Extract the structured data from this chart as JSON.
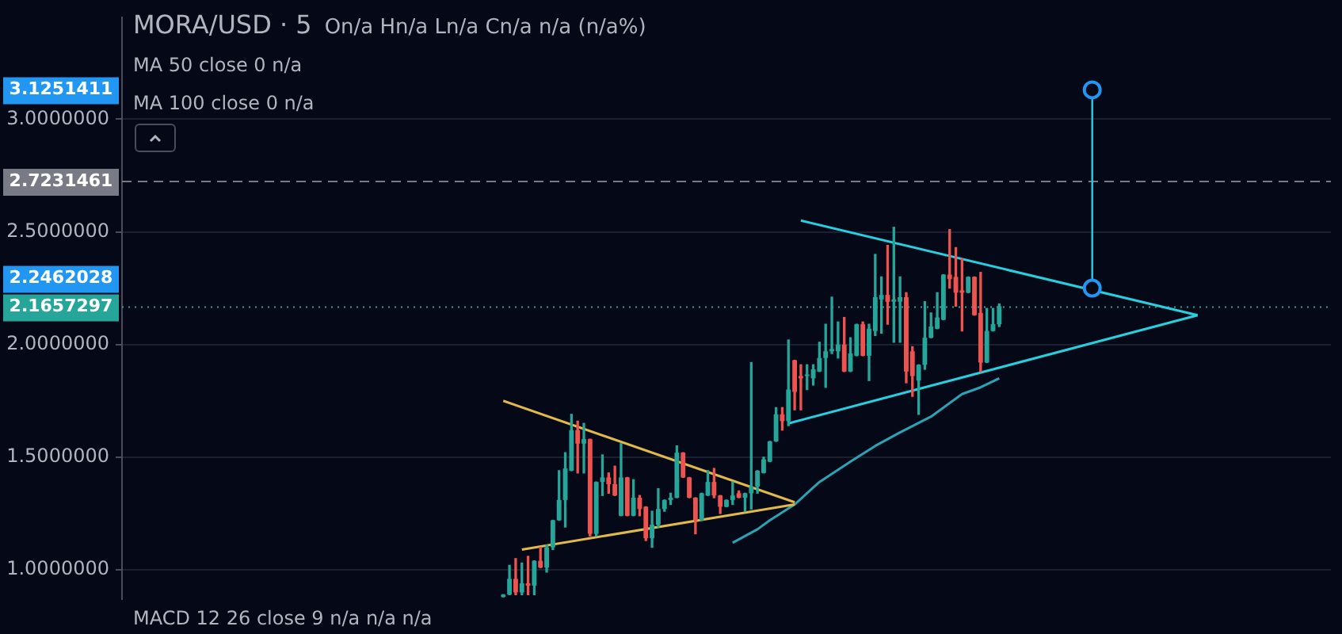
{
  "chart_data": {
    "type": "candlestick",
    "title": "MORA/USD · 5",
    "subtitle": "On/a Hn/a Ln/a Cn/a n/a (n/a%)",
    "annotations": [
      "MA 50 close 0  n/a",
      "MA 100 close 0  n/a",
      "MACD 12 26 close 9  n/a  n/a  n/a",
      "3.1251411",
      "2.2462028"
    ],
    "categories": [
      null,
      null,
      null,
      null,
      null,
      null,
      null,
      null,
      null,
      null,
      null,
      null,
      null,
      null,
      null,
      null,
      null,
      null,
      null,
      null,
      null,
      null,
      null,
      null,
      null,
      null,
      null,
      null,
      null,
      null,
      null,
      null,
      null,
      null,
      null,
      null,
      null,
      null,
      null,
      null,
      null,
      null,
      null,
      null,
      null,
      null,
      null,
      null,
      null,
      null,
      null,
      null,
      null,
      null,
      null,
      null,
      null,
      null,
      null,
      null,
      null,
      null,
      null,
      null,
      null,
      null,
      null,
      null,
      null,
      null,
      null,
      null,
      null,
      null,
      null,
      null,
      null,
      null,
      null,
      null,
      null,
      null,
      null,
      null,
      null,
      null,
      null,
      null,
      null,
      null,
      null,
      null,
      null,
      null,
      null,
      null,
      null,
      null,
      null,
      null,
      null,
      null,
      null,
      null,
      null,
      null,
      null,
      null,
      null,
      null,
      null,
      null,
      null,
      null,
      null,
      null,
      null,
      null,
      null,
      null,
      null,
      null,
      null,
      null,
      null,
      null,
      null,
      null,
      null,
      null,
      null,
      null,
      null,
      null,
      null,
      null,
      null,
      null,
      null,
      null,
      null,
      null,
      null,
      null,
      null,
      null,
      null,
      null,
      null,
      null,
      null,
      null,
      null,
      null,
      null,
      null,
      null,
      null,
      null,
      null,
      null,
      null,
      null,
      null,
      null,
      null,
      null,
      null,
      null,
      null,
      null,
      null,
      null,
      null,
      null,
      null,
      null,
      null,
      null,
      null,
      null,
      null,
      null,
      null,
      null,
      null,
      null,
      null,
      null,
      null,
      null,
      null,
      null,
      null,
      null
    ],
    "ohlc": [
      null,
      null,
      null,
      null,
      null,
      null,
      null,
      null,
      null,
      null,
      null,
      null,
      null,
      null,
      null,
      null,
      null,
      null,
      null,
      null,
      null,
      null,
      null,
      null,
      null,
      null,
      null,
      null,
      null,
      null,
      null,
      null,
      null,
      null,
      null,
      null,
      null,
      null,
      null,
      null,
      null,
      null,
      null,
      null,
      null,
      null,
      null,
      null,
      null,
      null,
      null,
      null,
      null,
      null,
      null,
      null,
      null,
      null,
      null,
      null,
      null,
      [
        0.88,
        0.89,
        0.88,
        0.89
      ],
      [
        0.89,
        1.02,
        0.89,
        0.96
      ],
      [
        0.96,
        1.05,
        0.89,
        0.9
      ],
      [
        0.9,
        1.03,
        0.89,
        0.94
      ],
      [
        0.94,
        1.06,
        0.89,
        0.93
      ],
      [
        0.93,
        1.04,
        0.89,
        1.04
      ],
      [
        1.04,
        1.1,
        1.01,
        1.01
      ],
      [
        1.01,
        1.11,
        0.99,
        1.1
      ],
      [
        1.1,
        1.22,
        1.09,
        1.22
      ],
      [
        1.22,
        1.44,
        1.22,
        1.31
      ],
      [
        1.31,
        1.52,
        1.19,
        1.45
      ],
      [
        1.44,
        1.69,
        1.44,
        1.62
      ],
      [
        1.62,
        1.66,
        1.43,
        1.56
      ],
      [
        1.56,
        1.65,
        1.43,
        1.58
      ],
      [
        1.58,
        1.58,
        1.15,
        1.16
      ],
      [
        1.16,
        1.39,
        1.15,
        1.39
      ],
      [
        1.39,
        1.51,
        1.33,
        1.41
      ],
      [
        1.41,
        1.43,
        1.34,
        1.38
      ],
      [
        1.38,
        1.46,
        1.33,
        1.33
      ],
      [
        1.24,
        1.56,
        1.24,
        1.41
      ],
      [
        1.41,
        1.41,
        1.24,
        1.24
      ],
      [
        1.24,
        1.4,
        1.24,
        1.32
      ],
      [
        1.32,
        1.33,
        1.24,
        1.27
      ],
      [
        1.28,
        1.28,
        1.13,
        1.14
      ],
      [
        1.14,
        1.26,
        1.1,
        1.2
      ],
      [
        1.2,
        1.36,
        1.19,
        1.27
      ],
      [
        1.27,
        1.31,
        1.26,
        1.31
      ],
      [
        1.31,
        1.34,
        1.29,
        1.32
      ],
      [
        1.32,
        1.55,
        1.32,
        1.52
      ],
      [
        1.52,
        1.52,
        1.41,
        1.41
      ],
      [
        1.41,
        1.41,
        1.32,
        1.32
      ],
      [
        1.32,
        1.32,
        1.16,
        1.22
      ],
      [
        1.22,
        1.34,
        1.22,
        1.34
      ],
      [
        1.33,
        1.44,
        1.33,
        1.39
      ],
      [
        1.39,
        1.45,
        1.32,
        1.33
      ],
      [
        1.33,
        1.33,
        1.25,
        1.28
      ],
      [
        1.28,
        1.31,
        1.28,
        1.31
      ],
      [
        1.31,
        1.39,
        1.29,
        1.33
      ],
      [
        1.34,
        1.35,
        1.32,
        1.32
      ],
      [
        1.32,
        1.34,
        1.26,
        1.34
      ],
      [
        1.34,
        1.92,
        1.27,
        1.37
      ],
      [
        1.37,
        1.44,
        1.34,
        1.44
      ],
      [
        1.43,
        1.5,
        1.43,
        1.49
      ],
      [
        1.48,
        1.57,
        1.48,
        1.57
      ],
      [
        1.57,
        1.72,
        1.57,
        1.69
      ],
      [
        1.69,
        1.72,
        1.62,
        1.66
      ],
      [
        1.66,
        2.02,
        1.64,
        1.8
      ],
      [
        1.93,
        1.93,
        1.71,
        1.79
      ],
      [
        1.86,
        1.91,
        1.71,
        1.85
      ],
      [
        1.86,
        1.91,
        1.8,
        1.86
      ],
      [
        1.85,
        1.91,
        1.82,
        1.89
      ],
      [
        1.88,
        2.01,
        1.88,
        1.94
      ],
      [
        1.94,
        2.09,
        1.81,
        1.97
      ],
      [
        1.97,
        2.21,
        1.96,
        1.98
      ],
      [
        1.97,
        2.1,
        1.94,
        2.0
      ],
      [
        2.0,
        2.12,
        1.88,
        1.88
      ],
      [
        1.88,
        2.03,
        1.88,
        1.96
      ],
      [
        1.95,
        2.09,
        1.95,
        2.09
      ],
      [
        2.09,
        2.1,
        1.95,
        1.95
      ],
      [
        1.95,
        2.09,
        1.84,
        2.07
      ],
      [
        2.06,
        2.4,
        2.04,
        2.21
      ],
      [
        2.2,
        2.3,
        2.05,
        2.22
      ],
      [
        2.22,
        2.44,
        2.09,
        2.19
      ],
      [
        2.19,
        2.52,
        2.01,
        2.2
      ],
      [
        2.19,
        2.3,
        2.01,
        2.21
      ],
      [
        2.21,
        2.23,
        1.83,
        1.88
      ],
      [
        1.97,
        1.99,
        1.77,
        1.86
      ],
      [
        1.84,
        1.91,
        1.69,
        1.91
      ],
      [
        1.91,
        2.19,
        1.89,
        2.03
      ],
      [
        2.03,
        2.14,
        2.03,
        2.08
      ],
      [
        2.07,
        2.23,
        2.07,
        2.12
      ],
      [
        2.11,
        2.31,
        2.11,
        2.31
      ],
      [
        2.31,
        2.51,
        2.25,
        2.29
      ],
      [
        2.3,
        2.43,
        2.17,
        2.23
      ],
      [
        2.24,
        2.38,
        2.06,
        2.23
      ],
      [
        2.23,
        2.3,
        2.23,
        2.3
      ],
      [
        2.3,
        2.3,
        2.13,
        2.13
      ],
      [
        2.14,
        2.32,
        1.88,
        1.92
      ],
      [
        1.92,
        2.16,
        1.92,
        2.06
      ],
      [
        2.06,
        2.16,
        2.06,
        2.09
      ],
      [
        2.09,
        2.18,
        2.08,
        2.17
      ],
      null,
      null,
      null,
      null,
      null,
      null,
      null,
      null,
      null,
      null,
      null,
      null,
      null,
      null,
      null,
      null,
      null,
      null,
      null,
      null,
      null,
      null,
      null,
      null,
      null,
      null,
      null,
      null,
      null,
      null,
      null,
      null,
      null,
      null,
      null,
      null,
      null,
      null,
      null,
      null,
      null,
      null,
      null,
      null,
      null,
      null,
      null,
      null,
      null,
      null,
      null,
      null,
      null
    ],
    "series": [
      {
        "type": "line",
        "color": "#e0b94a",
        "values": [
          null,
          null,
          null,
          null,
          null,
          null,
          null,
          null,
          null,
          null,
          null,
          null,
          null,
          null,
          null,
          null,
          null,
          null,
          null,
          null,
          null,
          null,
          null,
          null,
          null,
          null,
          null,
          null,
          null,
          null,
          null,
          null,
          null,
          null,
          null,
          null,
          null,
          null,
          null,
          null,
          null,
          null,
          null,
          null,
          null,
          null,
          null,
          null,
          null,
          null,
          null,
          null,
          null,
          null,
          null,
          null,
          null,
          null,
          null,
          null,
          null,
          1.75,
          null,
          null,
          null,
          null,
          null,
          null,
          null,
          null,
          null,
          null,
          null,
          null,
          null,
          null,
          null,
          null,
          null,
          null,
          null,
          null,
          null,
          null,
          null,
          null,
          null,
          null,
          null,
          null,
          null,
          null,
          null,
          null,
          null,
          null,
          null,
          null,
          null,
          null,
          null,
          null,
          null,
          null,
          null,
          null,
          null,
          null,
          1.3,
          null,
          null,
          null,
          null,
          null,
          null,
          null,
          null,
          null,
          null,
          null,
          null,
          null,
          null,
          null,
          null,
          null,
          null,
          null,
          null,
          null,
          null,
          null,
          null,
          null,
          null,
          null,
          null,
          null,
          null,
          null,
          null,
          null,
          null,
          null,
          null,
          null,
          null,
          null,
          null,
          null,
          null,
          null,
          null,
          null,
          null,
          null,
          null,
          null,
          null,
          null,
          null,
          null,
          null,
          null,
          null,
          null,
          null,
          null,
          null,
          null,
          null,
          null,
          null,
          null,
          null,
          null,
          null,
          null,
          null,
          null,
          null,
          null,
          null,
          null,
          null,
          null,
          null,
          null,
          null,
          null,
          null,
          null,
          null,
          null,
          null
        ]
      },
      {
        "type": "line",
        "color": "#e0b94a",
        "values": [
          null,
          null,
          null,
          null,
          null,
          null,
          null,
          null,
          null,
          null,
          null,
          null,
          null,
          null,
          null,
          null,
          null,
          null,
          null,
          null,
          null,
          null,
          null,
          null,
          null,
          null,
          null,
          null,
          null,
          null,
          null,
          null,
          null,
          null,
          null,
          null,
          null,
          null,
          null,
          null,
          null,
          null,
          null,
          null,
          null,
          null,
          null,
          null,
          null,
          null,
          null,
          null,
          null,
          null,
          null,
          null,
          null,
          null,
          null,
          null,
          null,
          null,
          null,
          null,
          1.09,
          null,
          null,
          null,
          null,
          null,
          null,
          null,
          null,
          null,
          null,
          null,
          null,
          null,
          null,
          null,
          null,
          null,
          null,
          null,
          null,
          null,
          null,
          null,
          null,
          null,
          null,
          null,
          null,
          null,
          null,
          null,
          null,
          null,
          null,
          null,
          null,
          null,
          null,
          null,
          null,
          null,
          null,
          null,
          1.29,
          null,
          null,
          null,
          null,
          null,
          null,
          null,
          null,
          null,
          null,
          null,
          null,
          null,
          null,
          null,
          null,
          null,
          null,
          null,
          null,
          null,
          null,
          null,
          null,
          null,
          null,
          null,
          null,
          null,
          null,
          null,
          null,
          null,
          null,
          null,
          null,
          null,
          null,
          null,
          null,
          null,
          null,
          null,
          null,
          null,
          null,
          null,
          null,
          null,
          null,
          null,
          null,
          null,
          null,
          null,
          null,
          null,
          null,
          null,
          null,
          null,
          null,
          null,
          null,
          null,
          null,
          null,
          null,
          null,
          null,
          null,
          null,
          null,
          null,
          null,
          null,
          null,
          null,
          null,
          null,
          null,
          null,
          null,
          null,
          null,
          null
        ]
      },
      {
        "type": "line",
        "color": "#26d0e0",
        "values": [
          null,
          null,
          null,
          null,
          null,
          null,
          null,
          null,
          null,
          null,
          null,
          null,
          null,
          null,
          null,
          null,
          null,
          null,
          null,
          null,
          null,
          null,
          null,
          null,
          null,
          null,
          null,
          null,
          null,
          null,
          null,
          null,
          null,
          null,
          null,
          null,
          null,
          null,
          null,
          null,
          null,
          null,
          null,
          null,
          null,
          null,
          null,
          null,
          null,
          null,
          null,
          null,
          null,
          null,
          null,
          null,
          null,
          null,
          null,
          null,
          null,
          null,
          null,
          null,
          null,
          null,
          null,
          null,
          null,
          null,
          null,
          null,
          null,
          null,
          null,
          null,
          null,
          null,
          null,
          null,
          null,
          null,
          null,
          null,
          null,
          null,
          null,
          null,
          null,
          null,
          null,
          null,
          null,
          null,
          null,
          null,
          null,
          null,
          null,
          null,
          null,
          null,
          null,
          null,
          null,
          null,
          null,
          null,
          null,
          2.55,
          null,
          null,
          null,
          null,
          null,
          null,
          null,
          null,
          null,
          null,
          null,
          null,
          null,
          null,
          null,
          null,
          null,
          null,
          null,
          null,
          null,
          null,
          null,
          null,
          null,
          null,
          null,
          null,
          null,
          null,
          null,
          null,
          null,
          null,
          null,
          null,
          null,
          null,
          null,
          null,
          null,
          null,
          null,
          null,
          null,
          null,
          null,
          null,
          null,
          null,
          null,
          null,
          null,
          null,
          null,
          null,
          null,
          null,
          null,
          null,
          null,
          null,
          null,
          2.13,
          null,
          null,
          null,
          null,
          null,
          null,
          null,
          null,
          null,
          null,
          null,
          null,
          null,
          null,
          null,
          null,
          null,
          null,
          null,
          null,
          null
        ]
      },
      {
        "type": "line",
        "color": "#26d0e0",
        "values": [
          null,
          null,
          null,
          null,
          null,
          null,
          null,
          null,
          null,
          null,
          null,
          null,
          null,
          null,
          null,
          null,
          null,
          null,
          null,
          null,
          null,
          null,
          null,
          null,
          null,
          null,
          null,
          null,
          null,
          null,
          null,
          null,
          null,
          null,
          null,
          null,
          null,
          null,
          null,
          null,
          null,
          null,
          null,
          null,
          null,
          null,
          null,
          null,
          null,
          null,
          null,
          null,
          null,
          null,
          null,
          null,
          null,
          null,
          null,
          null,
          null,
          null,
          null,
          null,
          null,
          null,
          null,
          null,
          null,
          null,
          null,
          null,
          null,
          null,
          null,
          null,
          null,
          null,
          null,
          null,
          null,
          null,
          null,
          null,
          null,
          null,
          null,
          null,
          null,
          null,
          null,
          null,
          null,
          null,
          null,
          null,
          null,
          null,
          null,
          null,
          null,
          null,
          null,
          null,
          null,
          null,
          null,
          1.65,
          null,
          null,
          null,
          null,
          null,
          null,
          null,
          null,
          null,
          null,
          null,
          null,
          null,
          null,
          null,
          null,
          null,
          null,
          null,
          null,
          null,
          null,
          null,
          null,
          null,
          null,
          null,
          null,
          null,
          null,
          null,
          null,
          null,
          null,
          null,
          null,
          null,
          null,
          null,
          null,
          null,
          null,
          null,
          null,
          null,
          null,
          null,
          null,
          null,
          null,
          null,
          null,
          null,
          null,
          null,
          null,
          null,
          null,
          null,
          null,
          null,
          null,
          null,
          null,
          null,
          2.13,
          null,
          null,
          null,
          null,
          null,
          null,
          null,
          null,
          null,
          null,
          null,
          null,
          null,
          null,
          null,
          null,
          null,
          null,
          null,
          null,
          null
        ]
      },
      {
        "type": "line",
        "color": "#2aa3b5",
        "values": [
          null,
          null,
          null,
          null,
          null,
          null,
          null,
          null,
          null,
          null,
          null,
          null,
          null,
          null,
          null,
          null,
          null,
          null,
          null,
          null,
          null,
          null,
          null,
          null,
          null,
          null,
          null,
          null,
          null,
          null,
          null,
          null,
          null,
          null,
          null,
          null,
          null,
          null,
          null,
          null,
          null,
          null,
          null,
          null,
          null,
          null,
          null,
          null,
          null,
          null,
          null,
          null,
          null,
          null,
          null,
          null,
          null,
          null,
          null,
          null,
          null,
          null,
          null,
          null,
          null,
          null,
          null,
          null,
          null,
          null,
          null,
          null,
          null,
          null,
          null,
          null,
          null,
          null,
          null,
          null,
          null,
          null,
          null,
          null,
          null,
          null,
          null,
          null,
          null,
          null,
          null,
          null,
          null,
          null,
          null,
          null,
          null,
          null,
          1.12,
          null,
          null,
          null,
          1.18,
          null,
          1.22,
          null,
          null,
          null,
          1.29,
          null,
          null,
          null,
          1.39,
          null,
          null,
          null,
          null,
          1.48,
          null,
          null,
          null,
          1.55,
          null,
          null,
          null,
          1.61,
          null,
          null,
          null,
          null,
          1.68,
          null,
          null,
          null,
          null,
          1.78,
          null,
          null,
          1.81,
          null,
          null,
          1.85,
          null,
          null,
          null,
          null,
          null,
          null,
          null,
          null,
          null,
          null,
          null,
          null,
          null,
          null,
          null,
          null,
          null,
          null,
          null,
          null,
          null,
          null,
          null,
          null,
          null,
          null,
          null,
          null,
          null,
          null,
          null,
          null,
          null,
          null,
          null,
          null,
          null,
          null,
          null,
          null,
          null,
          null,
          null,
          null,
          null,
          null,
          null,
          null,
          null,
          null,
          null,
          null,
          null
        ]
      },
      {
        "type": "scatter",
        "color": "#2196f3",
        "marker": "circle",
        "values": [
          null,
          null,
          null,
          null,
          null,
          null,
          null,
          null,
          null,
          null,
          null,
          null,
          null,
          null,
          null,
          null,
          null,
          null,
          null,
          null,
          null,
          null,
          null,
          null,
          null,
          null,
          null,
          null,
          null,
          null,
          null,
          null,
          null,
          null,
          null,
          null,
          null,
          null,
          null,
          null,
          null,
          null,
          null,
          null,
          null,
          null,
          null,
          null,
          null,
          null,
          null,
          null,
          null,
          null,
          null,
          null,
          null,
          null,
          null,
          null,
          null,
          null,
          null,
          null,
          null,
          null,
          null,
          null,
          null,
          null,
          null,
          null,
          null,
          null,
          null,
          null,
          null,
          null,
          null,
          null,
          null,
          null,
          null,
          null,
          null,
          null,
          null,
          null,
          null,
          null,
          null,
          null,
          null,
          null,
          null,
          null,
          null,
          null,
          null,
          null,
          null,
          null,
          null,
          null,
          null,
          null,
          null,
          null,
          null,
          null,
          null,
          null,
          null,
          null,
          null,
          null,
          null,
          null,
          null,
          null,
          null,
          null,
          null,
          null,
          null,
          null,
          null,
          null,
          null,
          null,
          null,
          null,
          null,
          null,
          null,
          null,
          null,
          null,
          null,
          null,
          null,
          null,
          null,
          null,
          null,
          null,
          null,
          null,
          null,
          null,
          null,
          null,
          null,
          null,
          null,
          null,
          3.13,
          null,
          null,
          null,
          null,
          null,
          null,
          null,
          null,
          null,
          null,
          null,
          null,
          null,
          null,
          null,
          null,
          null,
          null,
          null,
          null,
          null,
          null,
          null,
          null,
          null,
          null,
          null,
          null,
          null,
          null,
          null,
          null,
          null,
          null,
          null,
          null,
          null,
          null
        ]
      },
      {
        "type": "scatter",
        "color": "#2196f3",
        "marker": "circle",
        "values": [
          null,
          null,
          null,
          null,
          null,
          null,
          null,
          null,
          null,
          null,
          null,
          null,
          null,
          null,
          null,
          null,
          null,
          null,
          null,
          null,
          null,
          null,
          null,
          null,
          null,
          null,
          null,
          null,
          null,
          null,
          null,
          null,
          null,
          null,
          null,
          null,
          null,
          null,
          null,
          null,
          null,
          null,
          null,
          null,
          null,
          null,
          null,
          null,
          null,
          null,
          null,
          null,
          null,
          null,
          null,
          null,
          null,
          null,
          null,
          null,
          null,
          null,
          null,
          null,
          null,
          null,
          null,
          null,
          null,
          null,
          null,
          null,
          null,
          null,
          null,
          null,
          null,
          null,
          null,
          null,
          null,
          null,
          null,
          null,
          null,
          null,
          null,
          null,
          null,
          null,
          null,
          null,
          null,
          null,
          null,
          null,
          null,
          null,
          null,
          null,
          null,
          null,
          null,
          null,
          null,
          null,
          null,
          null,
          null,
          null,
          null,
          null,
          null,
          null,
          null,
          null,
          null,
          null,
          null,
          null,
          null,
          null,
          null,
          null,
          null,
          null,
          null,
          null,
          null,
          null,
          null,
          null,
          null,
          null,
          null,
          null,
          null,
          null,
          null,
          null,
          null,
          null,
          null,
          null,
          null,
          null,
          null,
          null,
          null,
          null,
          null,
          null,
          null,
          null,
          null,
          null,
          2.25,
          null,
          null,
          null,
          null,
          null,
          null,
          null,
          null,
          null,
          null,
          null,
          null,
          null,
          null,
          null,
          null,
          null,
          null,
          null,
          null,
          null,
          null,
          null,
          null,
          null,
          null,
          null,
          null,
          null,
          null,
          null,
          null,
          null,
          null,
          null,
          null,
          null,
          null
        ]
      }
    ],
    "ylim": [
      0.87,
      3.45
    ],
    "yticks": [
      {
        "value": 1,
        "label": "1.0000000"
      },
      {
        "value": 1.5,
        "label": "1.5000000"
      },
      {
        "value": 2,
        "label": "2.0000000"
      },
      {
        "value": 2.5,
        "label": "2.5000000"
      },
      {
        "value": 3,
        "label": "3.0000000"
      }
    ],
    "ref_lines": [
      {
        "axis": "y",
        "value": 2.7231461,
        "label": "2.7231461",
        "color": "#787b86",
        "line_style": "dashed"
      },
      {
        "axis": "y",
        "value": 2.1657297,
        "label": "2.1657297",
        "color": "#26a69a",
        "line_style": "dotted"
      }
    ],
    "grid": "y",
    "tick_labels": "y",
    "marker": "none"
  }
}
